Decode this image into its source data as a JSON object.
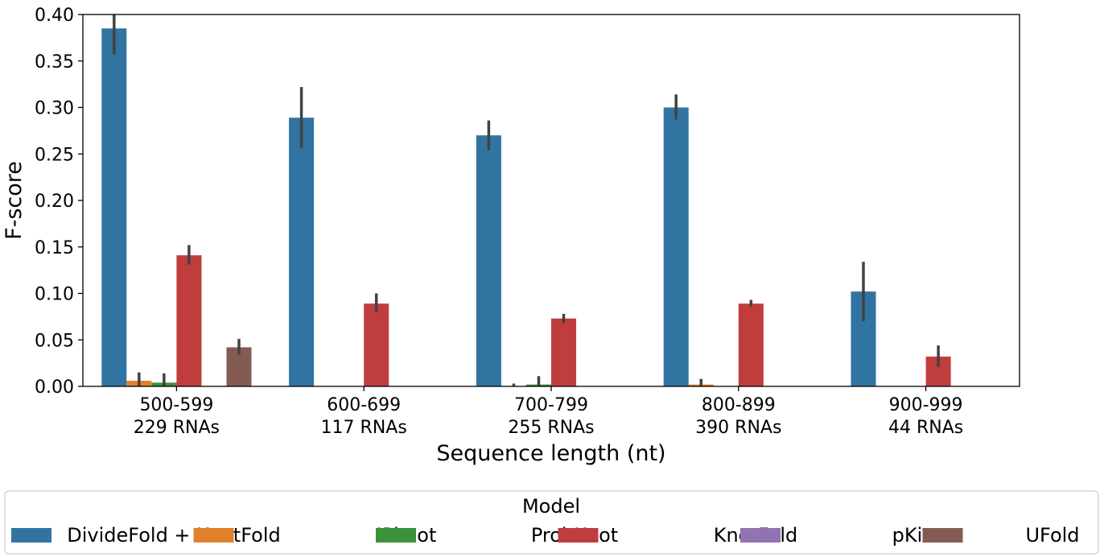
{
  "chart_data": {
    "type": "bar",
    "xlabel": "Sequence length (nt)",
    "ylabel": "F-score",
    "ylim": [
      0,
      0.4
    ],
    "yticks": [
      "0.00",
      "0.05",
      "0.10",
      "0.15",
      "0.20",
      "0.25",
      "0.30",
      "0.35",
      "0.40"
    ],
    "categories": [
      {
        "range": "500-599",
        "count": "229 RNAs"
      },
      {
        "range": "600-699",
        "count": "117 RNAs"
      },
      {
        "range": "700-799",
        "count": "255 RNAs"
      },
      {
        "range": "800-899",
        "count": "390 RNAs"
      },
      {
        "range": "900-999",
        "count": "44 RNAs"
      }
    ],
    "series": [
      {
        "name": "DivideFold + KnotFold",
        "color": "#3274a1",
        "values": [
          0.385,
          0.289,
          0.27,
          0.3,
          0.102
        ],
        "err_low": [
          0.357,
          0.256,
          0.254,
          0.287,
          0.07
        ],
        "err_high": [
          0.4,
          0.322,
          0.286,
          0.314,
          0.134
        ]
      },
      {
        "name": "IPknot",
        "color": "#e1812c",
        "values": [
          0.006,
          0.0,
          0.0,
          0.002,
          0.0
        ],
        "err_low": [
          0.0,
          null,
          0.0,
          0.0,
          null
        ],
        "err_high": [
          0.015,
          null,
          0.003,
          0.008,
          null
        ]
      },
      {
        "name": "ProbKnot",
        "color": "#3a923a",
        "values": [
          0.004,
          0.0,
          0.002,
          0.0,
          0.0
        ],
        "err_low": [
          0.0,
          null,
          0.0,
          null,
          null
        ],
        "err_high": [
          0.014,
          null,
          0.011,
          null,
          null
        ]
      },
      {
        "name": "KnotFold",
        "color": "#c03d3e",
        "values": [
          0.141,
          0.089,
          0.073,
          0.089,
          0.032
        ],
        "err_low": [
          0.131,
          0.08,
          0.068,
          0.086,
          0.021
        ],
        "err_high": [
          0.152,
          0.1,
          0.078,
          0.093,
          0.044
        ]
      },
      {
        "name": "pKiss",
        "color": "#9372b2",
        "values": [
          0.0,
          0.0,
          0.0,
          0.0,
          0.0
        ],
        "err_low": [
          null,
          null,
          null,
          null,
          null
        ],
        "err_high": [
          null,
          null,
          null,
          null,
          null
        ]
      },
      {
        "name": "UFold",
        "color": "#845b53",
        "values": [
          0.042,
          0.0,
          0.0,
          0.0,
          0.0
        ],
        "err_low": [
          0.034,
          null,
          null,
          null,
          null
        ],
        "err_high": [
          0.051,
          null,
          null,
          null,
          null
        ]
      }
    ],
    "legend": {
      "title": "Model",
      "placement": "bottom-outside"
    },
    "grid": false
  }
}
